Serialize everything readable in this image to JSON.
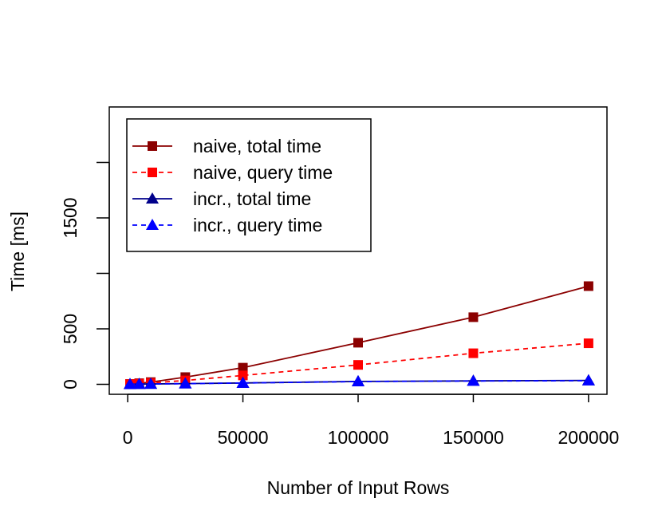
{
  "chart_data": {
    "type": "line",
    "title": "",
    "xlabel": "Number of Input Rows",
    "ylabel": "Time [ms]",
    "xlim": [
      -8000,
      208000
    ],
    "ylim": [
      -90,
      2500
    ],
    "x_ticks": [
      0,
      50000,
      100000,
      150000,
      200000
    ],
    "x_tick_labels": [
      "0",
      "50000",
      "100000",
      "150000",
      "200000"
    ],
    "y_ticks": [
      0,
      500,
      1000,
      1500,
      2000
    ],
    "y_tick_labels": [
      "0",
      "500",
      "",
      "1500",
      ""
    ],
    "grid": false,
    "legend": "top-left",
    "x": [
      1000,
      5000,
      10000,
      25000,
      50000,
      100000,
      150000,
      200000
    ],
    "series": [
      {
        "name": "naive, total time",
        "values": [
          3,
          10,
          20,
          65,
          150,
          375,
          605,
          885
        ],
        "color": "#8B0000",
        "dash": "solid",
        "marker": "square"
      },
      {
        "name": "naive, query time",
        "values": [
          2,
          6,
          12,
          35,
          80,
          175,
          280,
          370
        ],
        "color": "#FF0000",
        "dash": "dashed",
        "marker": "square"
      },
      {
        "name": "incr., total time",
        "values": [
          1,
          2,
          3,
          6,
          12,
          26,
          31,
          35
        ],
        "color": "#00008B",
        "dash": "solid",
        "marker": "triangle"
      },
      {
        "name": "incr., query time",
        "values": [
          1,
          2,
          3,
          6,
          12,
          25,
          30,
          33
        ],
        "color": "#0000FF",
        "dash": "dashed",
        "marker": "triangle"
      }
    ]
  }
}
